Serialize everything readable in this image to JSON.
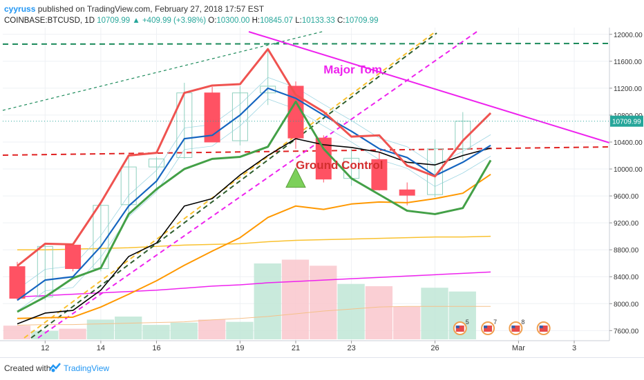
{
  "header": {
    "author": "cyyruss",
    "published_text": "published on TradingView.com, February 27, 2018 17:57 EST",
    "symbol": "COINBASE:BTCUSD, 1D",
    "last": "10709.99",
    "change_arrow": "▲",
    "change": "+409.99 (+3.98%)",
    "open_label": "O:",
    "open": "10300.00",
    "high_label": "H:",
    "high": "10845.07",
    "low_label": "L:",
    "low": "10133.33",
    "close_label": "C:",
    "close": "10709.99"
  },
  "footer": {
    "created_with": "Created with",
    "brand": "TradingView",
    "logo_icon": "tradingview-logo-icon"
  },
  "colors": {
    "bull": "#26a69a",
    "bear": "#ff5263",
    "ma_blue": "#1565c0",
    "ma_red": "#ef5350",
    "ma_green": "#43a047",
    "ma_black": "#000000",
    "ma_orange": "#ff9800",
    "ma_slow": "#f9c12e",
    "magenta": "#ee22ee",
    "dash_green": "#1b8a5a",
    "dash_red": "#e02020",
    "price_label_bg": "#26a69a"
  },
  "chart_data": {
    "type": "candlestick",
    "symbol": "COINBASE:BTCUSD",
    "interval": "1D",
    "ylim": [
      7450,
      12100
    ],
    "y_ticks": [
      "12000.00",
      "11600.00",
      "11200.00",
      "10800.00",
      "10400.00",
      "10000.00",
      "9600.00",
      "9200.00",
      "8800.00",
      "8400.00",
      "8000.00",
      "7600.00"
    ],
    "y_tick_values": [
      12000,
      11600,
      11200,
      10800,
      10400,
      10000,
      9600,
      9200,
      8800,
      8400,
      8000,
      7600
    ],
    "x_ticks": [
      {
        "label": "12",
        "i": 1
      },
      {
        "label": "14",
        "i": 3
      },
      {
        "label": "16",
        "i": 5
      },
      {
        "label": "19",
        "i": 8
      },
      {
        "label": "21",
        "i": 10
      },
      {
        "label": "23",
        "i": 12
      },
      {
        "label": "26",
        "i": 15
      },
      {
        "label": "Mar",
        "i": 18
      },
      {
        "label": "3",
        "i": 20
      }
    ],
    "last_price_label": "10709.99",
    "last_price": 10709.99,
    "candles": [
      {
        "i": 0,
        "o": 8550,
        "h": 8620,
        "l": 8050,
        "c": 8080
      },
      {
        "i": 1,
        "o": 8100,
        "h": 8890,
        "l": 8050,
        "c": 8850
      },
      {
        "i": 2,
        "o": 8870,
        "h": 8900,
        "l": 8480,
        "c": 8520
      },
      {
        "i": 3,
        "o": 8520,
        "h": 9480,
        "l": 8480,
        "c": 9460
      },
      {
        "i": 4,
        "o": 9470,
        "h": 10180,
        "l": 9300,
        "c": 10030
      },
      {
        "i": 5,
        "o": 10030,
        "h": 10180,
        "l": 9680,
        "c": 10150
      },
      {
        "i": 6,
        "o": 10170,
        "h": 11280,
        "l": 10150,
        "c": 11130
      },
      {
        "i": 7,
        "o": 11130,
        "h": 11220,
        "l": 10400,
        "c": 10400
      },
      {
        "i": 8,
        "o": 10420,
        "h": 11230,
        "l": 10350,
        "c": 11130
      },
      {
        "i": 9,
        "o": 11130,
        "h": 11780,
        "l": 10950,
        "c": 11230
      },
      {
        "i": 10,
        "o": 11230,
        "h": 11300,
        "l": 10300,
        "c": 10460
      },
      {
        "i": 11,
        "o": 10460,
        "h": 10500,
        "l": 9800,
        "c": 9850
      },
      {
        "i": 12,
        "o": 9860,
        "h": 10300,
        "l": 9750,
        "c": 10160
      },
      {
        "i": 13,
        "o": 10140,
        "h": 10250,
        "l": 9680,
        "c": 9690
      },
      {
        "i": 14,
        "o": 9690,
        "h": 9800,
        "l": 9460,
        "c": 9610
      },
      {
        "i": 15,
        "o": 9620,
        "h": 10440,
        "l": 9580,
        "c": 10300
      },
      {
        "i": 16,
        "o": 10300,
        "h": 10845,
        "l": 10133,
        "c": 10710
      }
    ],
    "volume": [
      {
        "i": 0,
        "bull": false,
        "v": 0.18
      },
      {
        "i": 1,
        "bull": true,
        "v": 0.11
      },
      {
        "i": 2,
        "bull": false,
        "v": 0.14
      },
      {
        "i": 3,
        "bull": true,
        "v": 0.26
      },
      {
        "i": 4,
        "bull": true,
        "v": 0.3
      },
      {
        "i": 5,
        "bull": true,
        "v": 0.19
      },
      {
        "i": 6,
        "bull": true,
        "v": 0.22
      },
      {
        "i": 7,
        "bull": false,
        "v": 0.26
      },
      {
        "i": 8,
        "bull": true,
        "v": 0.23
      },
      {
        "i": 9,
        "bull": true,
        "v": 1.0
      },
      {
        "i": 10,
        "bull": false,
        "v": 1.05
      },
      {
        "i": 11,
        "bull": false,
        "v": 0.97
      },
      {
        "i": 12,
        "bull": true,
        "v": 0.73
      },
      {
        "i": 13,
        "bull": false,
        "v": 0.7
      },
      {
        "i": 14,
        "bull": false,
        "v": 0.43
      },
      {
        "i": 15,
        "bull": true,
        "v": 0.68
      },
      {
        "i": 16,
        "bull": true,
        "v": 0.63
      }
    ],
    "lines": {
      "upper_red": [
        8560,
        8890,
        8880,
        9500,
        10200,
        10240,
        11130,
        11240,
        11260,
        11780,
        11100,
        10850,
        10480,
        10500,
        10050,
        9890,
        10420,
        10830
      ],
      "blue": [
        8050,
        8350,
        8400,
        8850,
        9450,
        9820,
        10450,
        10500,
        10800,
        11200,
        11050,
        10800,
        10560,
        10300,
        10170,
        9900,
        10100,
        10350
      ],
      "green": [
        7880,
        8100,
        8380,
        8530,
        9330,
        9700,
        10000,
        10150,
        10180,
        10330,
        11000,
        10300,
        9860,
        9620,
        9380,
        9330,
        9420,
        10130
      ],
      "black": [
        7700,
        7860,
        7900,
        8200,
        8700,
        8900,
        9450,
        9560,
        9910,
        10200,
        10450,
        10360,
        10320,
        10250,
        10100,
        10060,
        10200,
        10310
      ],
      "orange": [
        7780,
        7790,
        7800,
        7950,
        8140,
        8340,
        8570,
        8780,
        8980,
        9280,
        9450,
        9400,
        9480,
        9510,
        9500,
        9560,
        9640,
        9920
      ],
      "slow_yellow": [
        8800,
        8800,
        8810,
        8820,
        8830,
        8850,
        8870,
        8880,
        8890,
        8920,
        8940,
        8950,
        8960,
        8970,
        8980,
        8990,
        8990,
        9000
      ],
      "magenta_slow": [
        8100,
        8120,
        8140,
        8160,
        8180,
        8200,
        8230,
        8260,
        8280,
        8310,
        8330,
        8350,
        8370,
        8390,
        8410,
        8430,
        8450,
        8470
      ],
      "volume_ma": [
        7680,
        7690,
        7690,
        7700,
        7710,
        7720,
        7730,
        7760,
        7780,
        7810,
        7850,
        7890,
        7920,
        7950,
        7960,
        7960,
        7960,
        7960
      ]
    },
    "annotations": [
      {
        "text": "Major Tom",
        "color": "#ee22ee",
        "i": 11.0,
        "y": 11420
      },
      {
        "text": "Ground Control",
        "color": "#d32f2f",
        "i": 10.0,
        "y": 10000
      }
    ],
    "markers": [
      {
        "type": "triangle-up",
        "color": "#7cd05a",
        "i": 10.0,
        "y": 9850
      }
    ],
    "event_badges": [
      {
        "i": 15.9,
        "count": "5"
      },
      {
        "i": 16.9,
        "count": "7"
      },
      {
        "i": 17.9,
        "count": "8"
      },
      {
        "i": 18.9,
        "count": ""
      }
    ]
  }
}
